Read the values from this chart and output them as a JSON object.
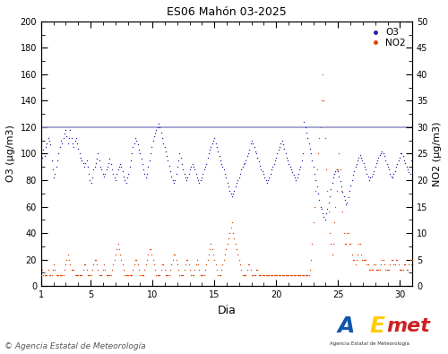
{
  "title": "ES06 Mahón 03-2025",
  "xlabel": "Dia",
  "ylabel_left": "O3 (µg/m3)",
  "ylabel_right": "NO2 (µg/m3)",
  "xlim": [
    1,
    31
  ],
  "ylim_left": [
    0,
    200
  ],
  "ylim_right": [
    0,
    50
  ],
  "yticks_left": [
    0,
    20,
    40,
    60,
    80,
    100,
    120,
    140,
    160,
    180,
    200
  ],
  "yticks_right": [
    0,
    5,
    10,
    15,
    20,
    25,
    30,
    35,
    40,
    45,
    50
  ],
  "xticks": [
    1,
    5,
    10,
    15,
    20,
    25,
    30
  ],
  "threshold_o3": 120,
  "threshold_color": "#9999cc",
  "o3_color": "#2222aa",
  "no2_color": "#dd4400",
  "background_color": "#ffffff",
  "copyright_text": "© Agencia Estatal de Meteorología",
  "legend_o3": "O3",
  "legend_no2": "NO2",
  "o3_data": [
    100,
    97,
    103,
    98,
    105,
    108,
    112,
    110,
    107,
    95,
    88,
    82,
    85,
    90,
    95,
    100,
    105,
    110,
    108,
    112,
    115,
    118,
    113,
    108,
    112,
    118,
    112,
    108,
    105,
    110,
    112,
    108,
    104,
    100,
    97,
    95,
    93,
    90,
    93,
    95,
    90,
    85,
    80,
    78,
    82,
    88,
    90,
    93,
    96,
    100,
    95,
    90,
    88,
    85,
    83,
    85,
    88,
    90,
    93,
    96,
    92,
    88,
    85,
    82,
    80,
    85,
    88,
    90,
    92,
    90,
    87,
    83,
    80,
    78,
    82,
    85,
    90,
    95,
    100,
    105,
    108,
    112,
    110,
    107,
    103,
    100,
    96,
    92,
    88,
    85,
    82,
    85,
    90,
    95,
    100,
    105,
    110,
    113,
    116,
    118,
    120,
    123,
    120,
    116,
    112,
    108,
    105,
    102,
    98,
    95,
    91,
    87,
    83,
    80,
    78,
    80,
    85,
    90,
    95,
    100,
    97,
    92,
    88,
    85,
    82,
    80,
    82,
    85,
    88,
    90,
    92,
    90,
    88,
    85,
    82,
    80,
    78,
    80,
    82,
    85,
    88,
    90,
    92,
    97,
    100,
    103,
    105,
    108,
    110,
    112,
    108,
    105,
    102,
    98,
    95,
    92,
    90,
    88,
    85,
    82,
    78,
    75,
    72,
    70,
    68,
    70,
    72,
    75,
    78,
    80,
    82,
    85,
    88,
    90,
    92,
    93,
    95,
    98,
    100,
    103,
    108,
    110,
    108,
    105,
    102,
    100,
    97,
    94,
    91,
    88,
    87,
    85,
    82,
    80,
    78,
    80,
    82,
    85,
    88,
    90,
    92,
    95,
    97,
    100,
    103,
    105,
    108,
    110,
    107,
    104,
    100,
    97,
    95,
    92,
    90,
    88,
    86,
    84,
    82,
    80,
    82,
    85,
    88,
    90,
    95,
    100,
    124,
    120,
    116,
    112,
    108,
    104,
    100,
    95,
    90,
    85,
    80,
    75,
    70,
    65,
    60,
    58,
    55,
    52,
    50,
    55,
    58,
    63,
    68,
    73,
    78,
    82,
    85,
    87,
    88,
    87,
    83,
    79,
    75,
    71,
    68,
    65,
    62,
    63,
    67,
    72,
    76,
    80,
    84,
    87,
    90,
    92,
    95,
    97,
    99,
    97,
    95,
    93,
    90,
    88,
    85,
    83,
    80,
    82,
    83,
    85,
    87,
    90,
    93,
    95,
    97,
    99,
    100,
    102,
    100,
    98,
    95,
    92,
    90,
    88,
    85,
    83,
    82,
    85,
    87,
    90,
    92,
    95,
    97,
    100,
    100,
    98,
    95,
    93,
    90,
    88,
    86,
    85,
    95,
    100
  ],
  "no2_data": [
    2,
    3,
    2,
    2,
    2,
    2,
    3,
    2,
    2,
    2,
    3,
    4,
    3,
    2,
    2,
    2,
    2,
    2,
    2,
    2,
    3,
    4,
    5,
    6,
    5,
    4,
    3,
    3,
    3,
    2,
    2,
    2,
    2,
    2,
    2,
    2,
    3,
    4,
    4,
    3,
    2,
    2,
    2,
    2,
    3,
    4,
    5,
    5,
    4,
    3,
    2,
    2,
    2,
    3,
    4,
    3,
    2,
    2,
    2,
    2,
    2,
    3,
    4,
    5,
    6,
    7,
    8,
    7,
    6,
    5,
    4,
    3,
    2,
    2,
    2,
    2,
    2,
    2,
    2,
    3,
    4,
    5,
    5,
    4,
    3,
    2,
    2,
    2,
    2,
    3,
    4,
    5,
    6,
    7,
    7,
    6,
    5,
    4,
    3,
    2,
    2,
    2,
    2,
    3,
    4,
    4,
    3,
    2,
    2,
    2,
    2,
    3,
    4,
    5,
    6,
    6,
    5,
    4,
    3,
    2,
    2,
    2,
    2,
    3,
    4,
    5,
    5,
    4,
    3,
    2,
    2,
    2,
    3,
    4,
    5,
    4,
    3,
    2,
    2,
    2,
    2,
    3,
    4,
    5,
    6,
    7,
    8,
    7,
    6,
    5,
    4,
    3,
    2,
    2,
    2,
    3,
    4,
    5,
    6,
    7,
    8,
    9,
    10,
    11,
    12,
    10,
    9,
    8,
    7,
    6,
    5,
    4,
    3,
    2,
    2,
    2,
    2,
    3,
    4,
    4,
    3,
    2,
    2,
    2,
    2,
    3,
    3,
    2,
    2,
    2,
    2,
    2,
    2,
    2,
    2,
    2,
    2,
    2,
    2,
    2,
    2,
    2,
    2,
    2,
    2,
    2,
    2,
    2,
    2,
    2,
    2,
    2,
    2,
    2,
    2,
    2,
    2,
    2,
    2,
    2,
    2,
    2,
    2,
    2,
    2,
    2,
    2,
    2,
    2,
    2,
    2,
    3,
    5,
    8,
    12,
    15,
    18,
    22,
    25,
    28,
    30,
    35,
    40,
    35,
    28,
    22,
    18,
    14,
    10,
    8,
    6,
    8,
    12,
    15,
    18,
    22,
    25,
    22,
    18,
    14,
    10,
    8,
    8,
    10,
    10,
    8,
    8,
    6,
    5,
    5,
    4,
    5,
    6,
    8,
    8,
    6,
    5,
    5,
    5,
    5,
    4,
    4,
    3,
    3,
    3,
    3,
    4,
    4,
    3,
    3,
    3,
    3,
    4,
    5,
    5,
    4,
    3,
    3,
    3,
    3,
    4,
    5,
    5,
    4,
    4,
    5,
    5,
    4,
    3,
    3,
    3,
    3,
    4,
    4,
    3,
    3,
    4,
    5,
    4,
    5
  ]
}
